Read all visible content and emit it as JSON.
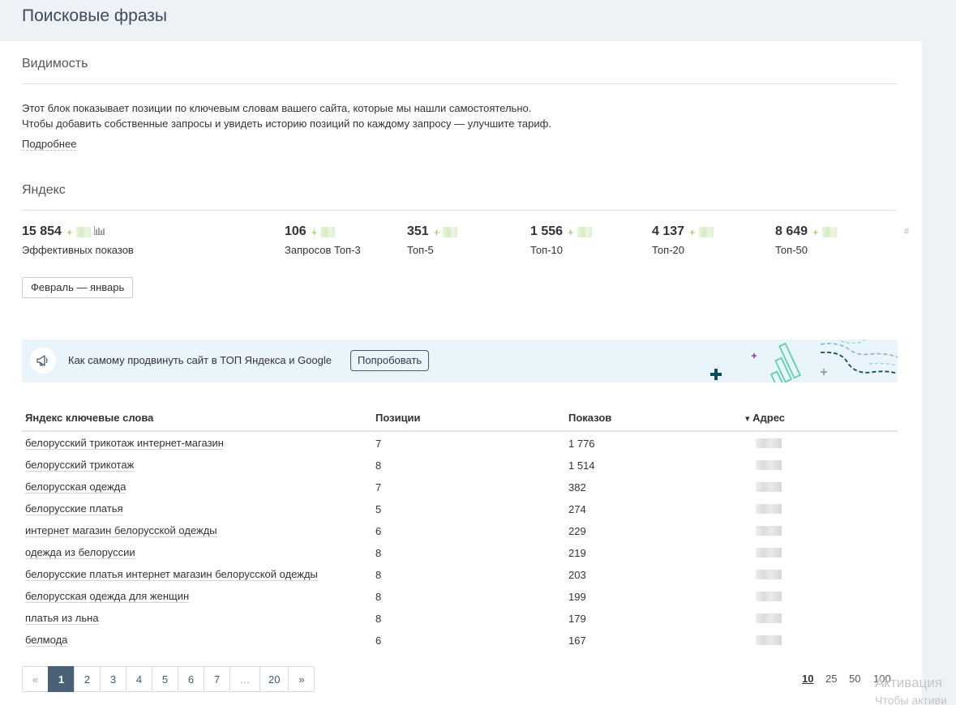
{
  "header": {
    "title": "Поисковые фразы"
  },
  "visibility": {
    "title": "Видимость",
    "description_line1": "Этот блок показывает позиции по ключевым словам вашего сайта, которые мы нашли самостоятельно.",
    "description_line2": "Чтобы добавить собственные запросы и увидеть историю позиций по каждому запросу — улучшите тариф.",
    "more_link": "Подробнее"
  },
  "yandex": {
    "title": "Яндекс",
    "stats": [
      {
        "value": "15 854",
        "delta": "+",
        "label": "Эффективных показов"
      },
      {
        "value": "106",
        "delta": "+",
        "label": "Запросов Топ-3"
      },
      {
        "value": "351",
        "delta": "+",
        "label": "Топ-5"
      },
      {
        "value": "1 556",
        "delta": "+",
        "label": "Топ-10"
      },
      {
        "value": "4 137",
        "delta": "+",
        "label": "Топ-20"
      },
      {
        "value": "8 649",
        "delta": "+",
        "label": "Топ-50"
      }
    ],
    "hash_symbol": "#",
    "period_button": "Февраль — январь"
  },
  "banner": {
    "text": "Как самому продвинуть сайт в ТОП Яндекса и Google",
    "button": "Попробовать",
    "icon": "megaphone-icon"
  },
  "table": {
    "headers": {
      "keyword": "Яндекс ключевые слова",
      "position": "Позиции",
      "impressions": "Показов",
      "address": "Адрес"
    },
    "sort_indicator": "▾",
    "rows": [
      {
        "keyword": "белорусский трикотаж интернет-магазин",
        "position": "7",
        "impressions": "1 776"
      },
      {
        "keyword": "белорусский трикотаж",
        "position": "8",
        "impressions": "1 514"
      },
      {
        "keyword": "белорусская одежда",
        "position": "7",
        "impressions": "382"
      },
      {
        "keyword": "белорусские платья",
        "position": "5",
        "impressions": "274"
      },
      {
        "keyword": "интернет магазин белорусской одежды",
        "position": "6",
        "impressions": "229"
      },
      {
        "keyword": "одежда из белоруссии",
        "position": "8",
        "impressions": "219"
      },
      {
        "keyword": "белорусские платья интернет магазин белорусской одежды",
        "position": "8",
        "impressions": "203"
      },
      {
        "keyword": "белорусская одежда для женщин",
        "position": "8",
        "impressions": "199"
      },
      {
        "keyword": "платья из льна",
        "position": "8",
        "impressions": "179"
      },
      {
        "keyword": "белмода",
        "position": "6",
        "impressions": "167"
      }
    ]
  },
  "pagination": {
    "prev": "«",
    "pages": [
      "1",
      "2",
      "3",
      "4",
      "5",
      "6",
      "7"
    ],
    "ellipsis": "…",
    "last": "20",
    "next": "»",
    "current": "1",
    "page_sizes": [
      "10",
      "25",
      "50",
      "100"
    ],
    "current_page_size": "10"
  },
  "watermark": {
    "line1": "Активация",
    "line2": "Чтобы активи"
  }
}
